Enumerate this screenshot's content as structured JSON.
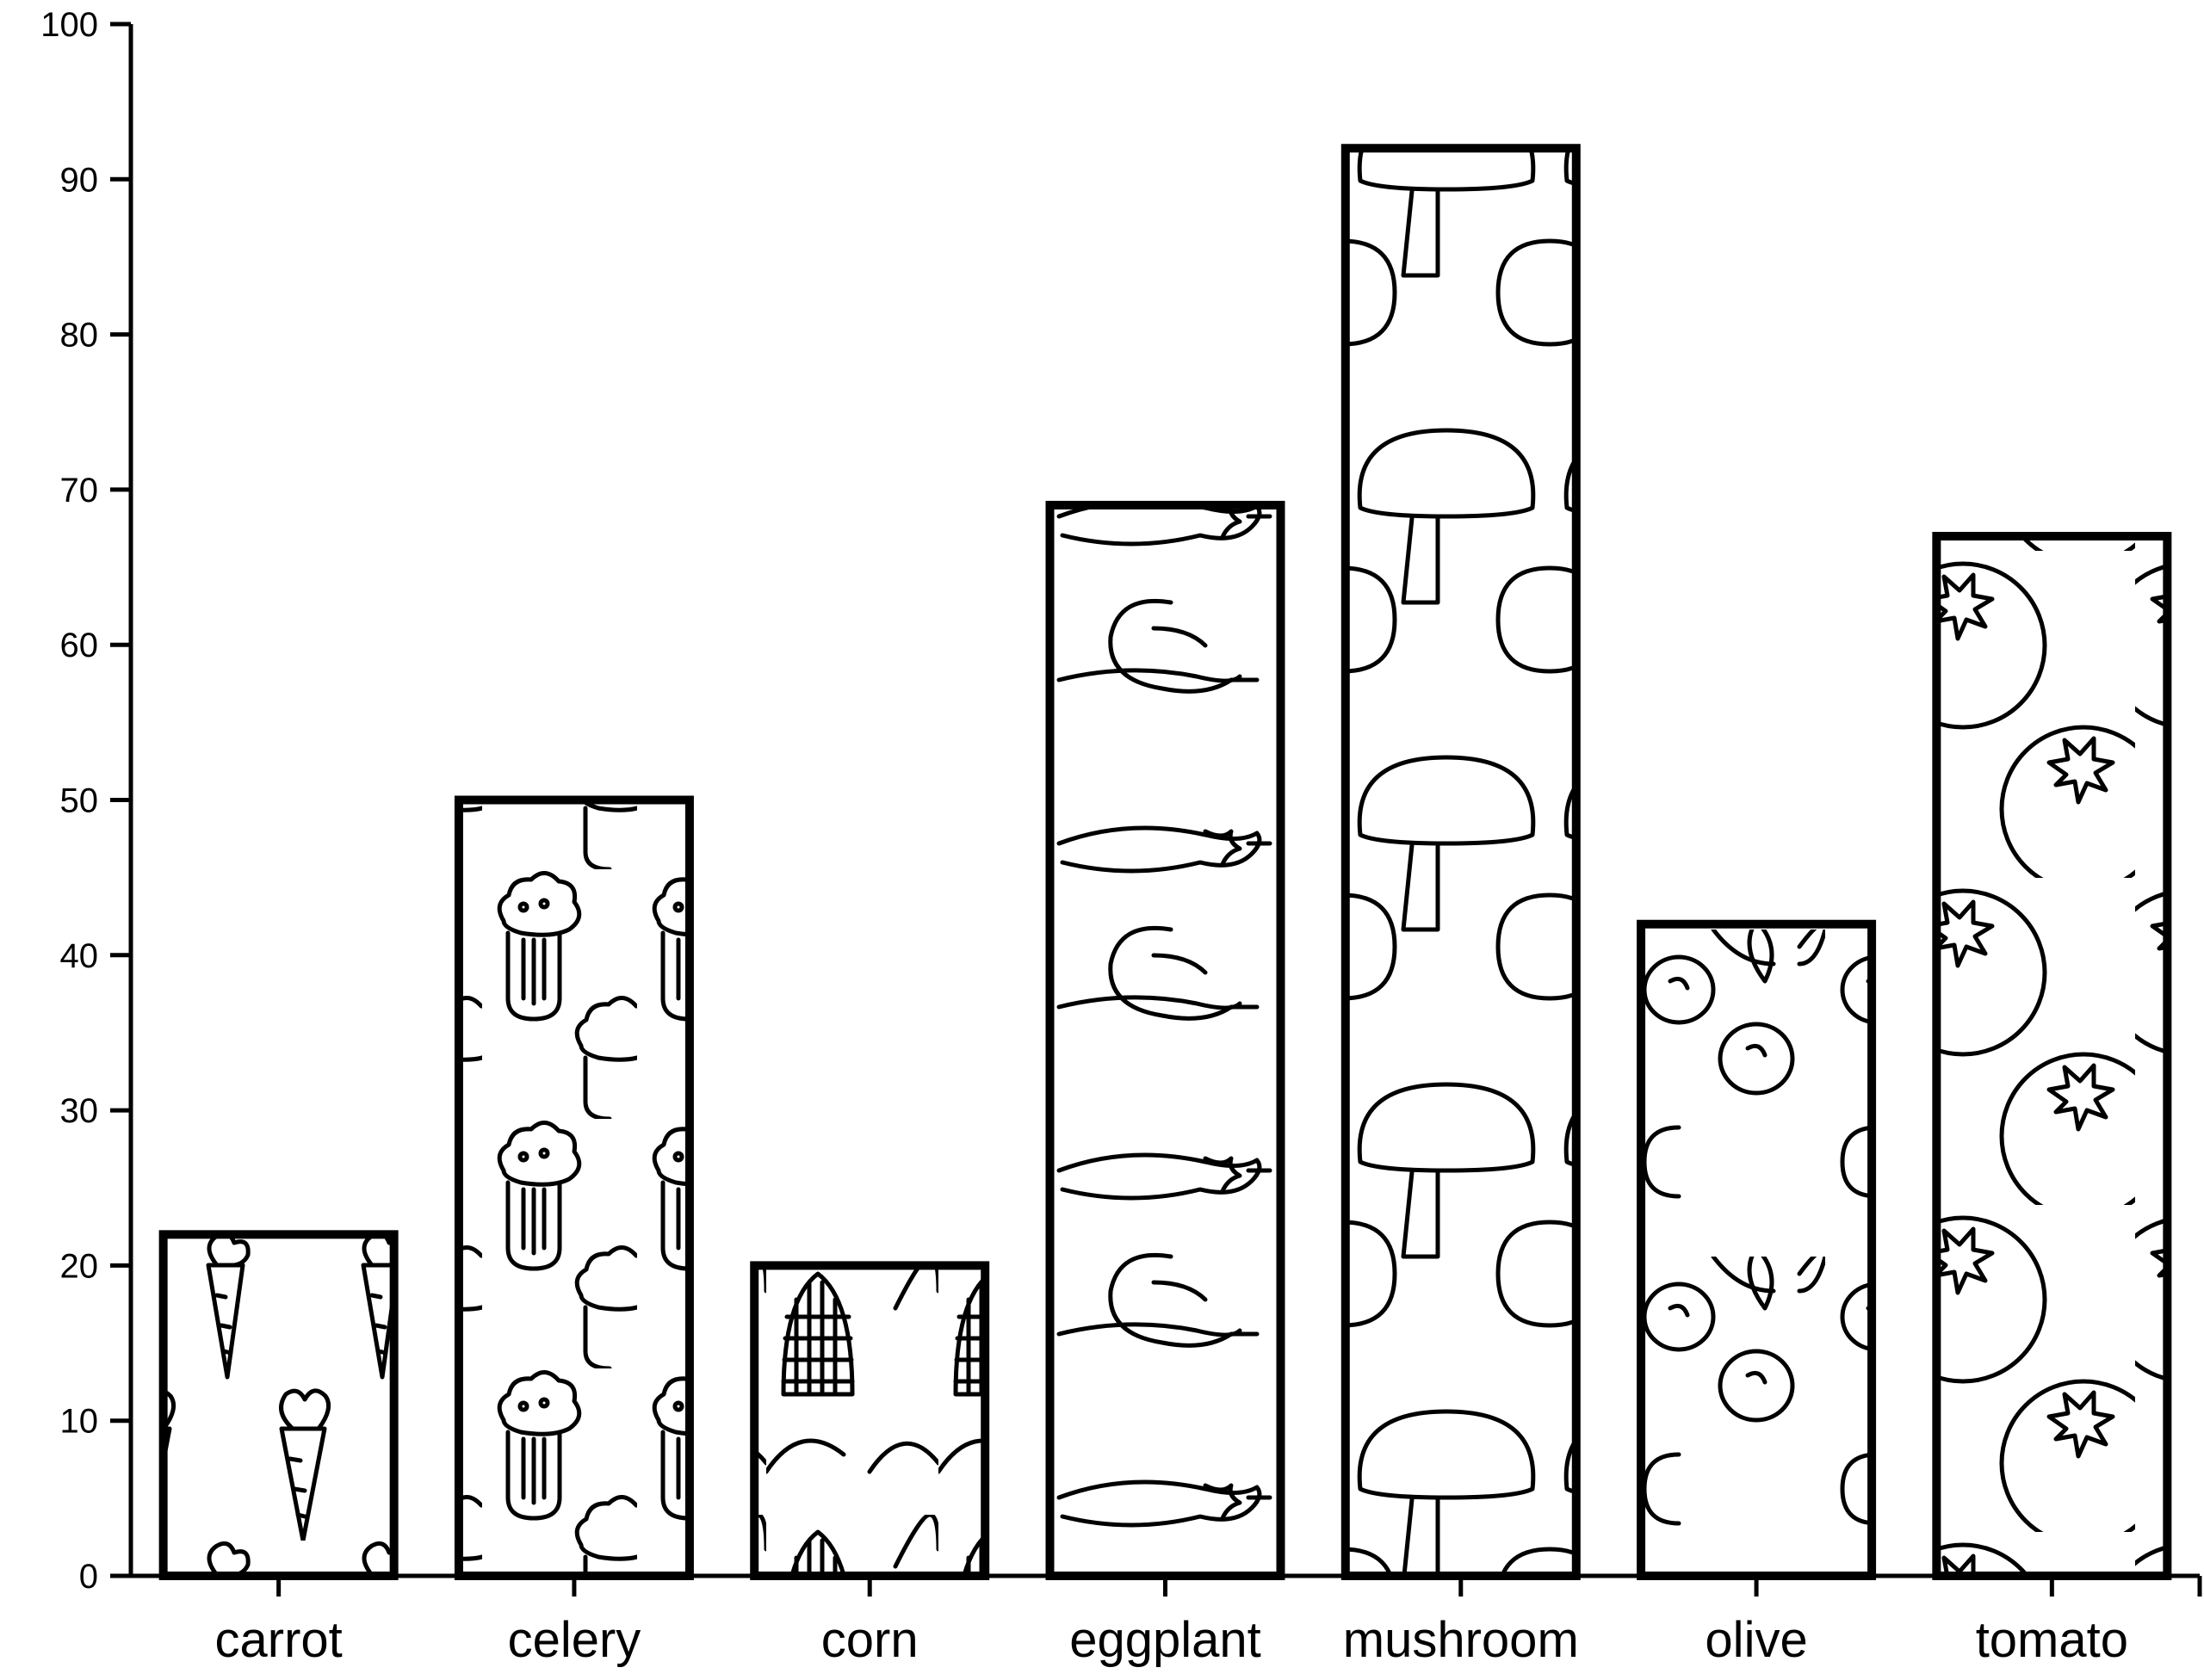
{
  "chart_data": {
    "type": "bar",
    "title": "",
    "xlabel": "",
    "ylabel": "",
    "categories": [
      "carrot",
      "celery",
      "corn",
      "eggplant",
      "mushroom",
      "olive",
      "tomato"
    ],
    "values": [
      22,
      50,
      20,
      69,
      92,
      42,
      67
    ],
    "ylim": [
      0,
      100
    ],
    "yticks": [
      0,
      10,
      20,
      30,
      40,
      50,
      60,
      70,
      80,
      90,
      100
    ],
    "grid": false,
    "legend": "none",
    "fill_patterns": [
      "carrot",
      "celery",
      "corn",
      "eggplant",
      "mushroom",
      "olive",
      "tomato"
    ],
    "bar_fill": "#ffffff",
    "bar_edge": "#000000"
  }
}
